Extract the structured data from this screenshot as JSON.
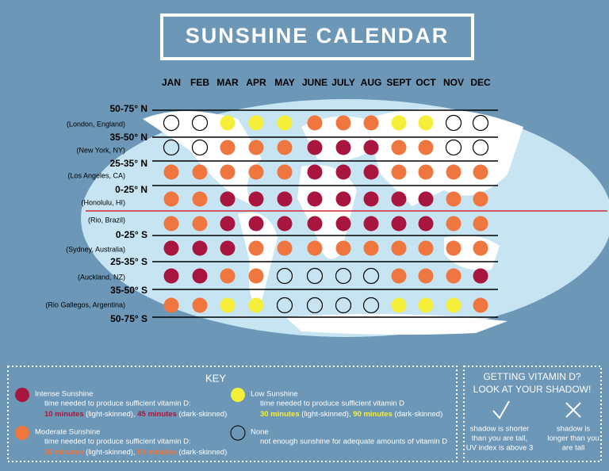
{
  "title": "SUNSHINE CALENDAR",
  "months": [
    "JAN",
    "FEB",
    "MAR",
    "APR",
    "MAY",
    "JUNE",
    "JULY",
    "AUG",
    "SEPT",
    "OCT",
    "NOV",
    "DEC"
  ],
  "bands": [
    "50-75° N",
    "35-50° N",
    "25-35° N",
    "0-25° N",
    "0-25° S",
    "25-35° S",
    "35-50° S",
    "50-75° S"
  ],
  "places": [
    "(London, England)",
    "(New York, NY)",
    "(Los Angeles, CA)",
    "(Honolulu, HI)",
    "(Rio, Brazil)",
    "(Sydney, Australia)",
    "(Auckland, NZ)",
    "(Rio Gallegos, Argentina)"
  ],
  "grid": [
    [
      3,
      3,
      1,
      1,
      1,
      2,
      2,
      2,
      1,
      1,
      3,
      3
    ],
    [
      3,
      3,
      2,
      2,
      2,
      0,
      0,
      0,
      2,
      2,
      3,
      3
    ],
    [
      2,
      2,
      2,
      2,
      2,
      0,
      0,
      0,
      2,
      2,
      2,
      2
    ],
    [
      2,
      2,
      0,
      0,
      0,
      0,
      0,
      0,
      0,
      0,
      2,
      2
    ],
    [
      2,
      2,
      0,
      0,
      0,
      0,
      0,
      0,
      0,
      0,
      2,
      2
    ],
    [
      0,
      0,
      0,
      2,
      2,
      2,
      2,
      2,
      2,
      2,
      2,
      2
    ],
    [
      0,
      0,
      2,
      2,
      3,
      3,
      3,
      3,
      2,
      2,
      2,
      0
    ],
    [
      2,
      2,
      1,
      1,
      3,
      3,
      3,
      3,
      1,
      1,
      1,
      2
    ]
  ],
  "key": {
    "title": "KEY",
    "items": [
      {
        "label": "Intense Sunshine",
        "color": "#a8163f",
        "desc": "time needed to produce sufficient vitamin D:",
        "light_time": "10 minutes",
        "light_note": "(light-skinned),",
        "dark_time": "45 minutes",
        "dark_note": "(dark-skinned)"
      },
      {
        "label": "Low Sunshine",
        "color": "#f5ef3a",
        "desc": "time needed to produce sufficient vitamin D",
        "light_time": "30 minutes",
        "light_note": "(light-skinned),",
        "dark_time": "90 minutes",
        "dark_note": "(dark-skinned)"
      },
      {
        "label": "Moderate Sunshine",
        "color": "#f0763f",
        "desc": "time needed to produce sufficient vitamin D:",
        "light_time": "20 minutes",
        "light_note": "(light-skinned),",
        "dark_time": "60 minutes",
        "dark_note": "(dark-skinned)"
      },
      {
        "label": "None",
        "color": "none",
        "desc": "not enough sunshine for adequate amounts of vitamin D"
      }
    ]
  },
  "shadow": {
    "title": [
      "GETTING VITAMIN D?",
      "LOOK AT YOUR SHADOW!"
    ],
    "yes": [
      "shadow is shorter",
      "than you are tall,",
      "UV index is above 3"
    ],
    "no": [
      "shadow is",
      "longer than you",
      "are tall"
    ]
  }
}
